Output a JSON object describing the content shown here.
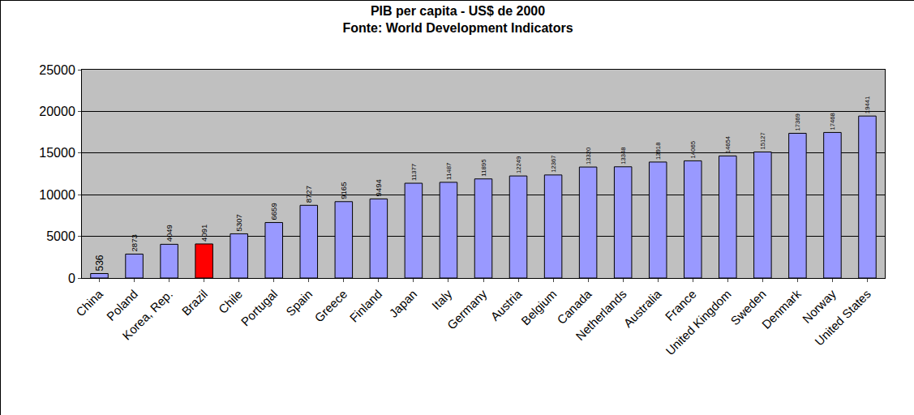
{
  "chart_data": {
    "type": "bar",
    "title": "PIB per capita - US$ de 2000",
    "subtitle": "Fonte: World Development Indicators",
    "categories": [
      "China",
      "Poland",
      "Korea, Rep.",
      "Brazil",
      "Chile",
      "Portugal",
      "Spain",
      "Greece",
      "Finland",
      "Japan",
      "Italy",
      "Germany",
      "Austria",
      "Belgium",
      "Canada",
      "Netherlands",
      "Australia",
      "France",
      "United Kingdom",
      "Sweden",
      "Denmark",
      "Norway",
      "United States"
    ],
    "values": [
      536,
      2873,
      4049,
      4091,
      5307,
      6659,
      8727,
      9165,
      9494,
      11377,
      11487,
      11895,
      12249,
      12367,
      13320,
      13348,
      13918,
      14065,
      14654,
      15127,
      17369,
      17468,
      19441
    ],
    "colors": [
      "#9999ff",
      "#9999ff",
      "#9999ff",
      "#ff0000",
      "#9999ff",
      "#9999ff",
      "#9999ff",
      "#9999ff",
      "#9999ff",
      "#9999ff",
      "#9999ff",
      "#9999ff",
      "#9999ff",
      "#9999ff",
      "#9999ff",
      "#9999ff",
      "#9999ff",
      "#9999ff",
      "#9999ff",
      "#9999ff",
      "#9999ff",
      "#9999ff",
      "#9999ff"
    ],
    "ylim": [
      0,
      25000
    ],
    "yticks": [
      0,
      5000,
      10000,
      15000,
      20000,
      25000
    ],
    "grid": true,
    "data_labels": true
  }
}
